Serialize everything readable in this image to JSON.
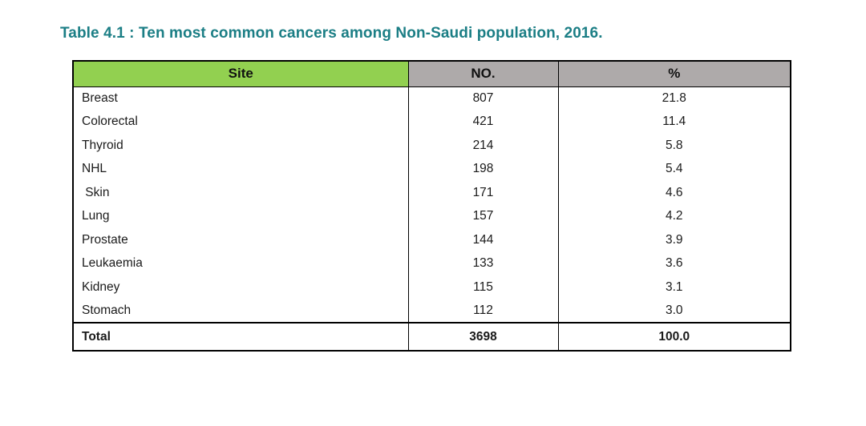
{
  "title": "Table 4.1 : Ten most common cancers among Non-Saudi population, 2016.",
  "colors": {
    "title_text": "#1B7E85",
    "site_header_bg": "#92D050",
    "numeric_header_bg": "#AEAAAA",
    "border": "#000000",
    "body_text": "#1a1a1a",
    "page_bg": "#ffffff"
  },
  "table": {
    "headers": {
      "site": "Site",
      "no": "NO.",
      "pct": "%"
    },
    "rows": [
      {
        "site": "Breast",
        "no": "807",
        "pct": "21.8"
      },
      {
        "site": "Colorectal",
        "no": "421",
        "pct": "11.4"
      },
      {
        "site": "Thyroid",
        "no": "214",
        "pct": "5.8"
      },
      {
        "site": "NHL",
        "no": "198",
        "pct": "5.4"
      },
      {
        "site": " Skin",
        "no": "171",
        "pct": "4.6"
      },
      {
        "site": "Lung",
        "no": "157",
        "pct": "4.2"
      },
      {
        "site": "Prostate",
        "no": "144",
        "pct": "3.9"
      },
      {
        "site": "Leukaemia",
        "no": "133",
        "pct": "3.6"
      },
      {
        "site": "Kidney",
        "no": "115",
        "pct": "3.1"
      },
      {
        "site": "Stomach",
        "no": "112",
        "pct": "3.0"
      }
    ],
    "total": {
      "site": "Total",
      "no": "3698",
      "pct": "100.0"
    }
  },
  "chart_data": {
    "type": "table",
    "title": "Table 4.1 : Ten most common cancers among Non-Saudi population, 2016.",
    "columns": [
      "Site",
      "NO.",
      "%"
    ],
    "rows": [
      [
        "Breast",
        807,
        21.8
      ],
      [
        "Colorectal",
        421,
        11.4
      ],
      [
        "Thyroid",
        214,
        5.8
      ],
      [
        "NHL",
        198,
        5.4
      ],
      [
        "Skin",
        171,
        4.6
      ],
      [
        "Lung",
        157,
        4.2
      ],
      [
        "Prostate",
        144,
        3.9
      ],
      [
        "Leukaemia",
        133,
        3.6
      ],
      [
        "Kidney",
        115,
        3.1
      ],
      [
        "Stomach",
        112,
        3.0
      ]
    ],
    "total_row": [
      "Total",
      3698,
      100.0
    ]
  }
}
